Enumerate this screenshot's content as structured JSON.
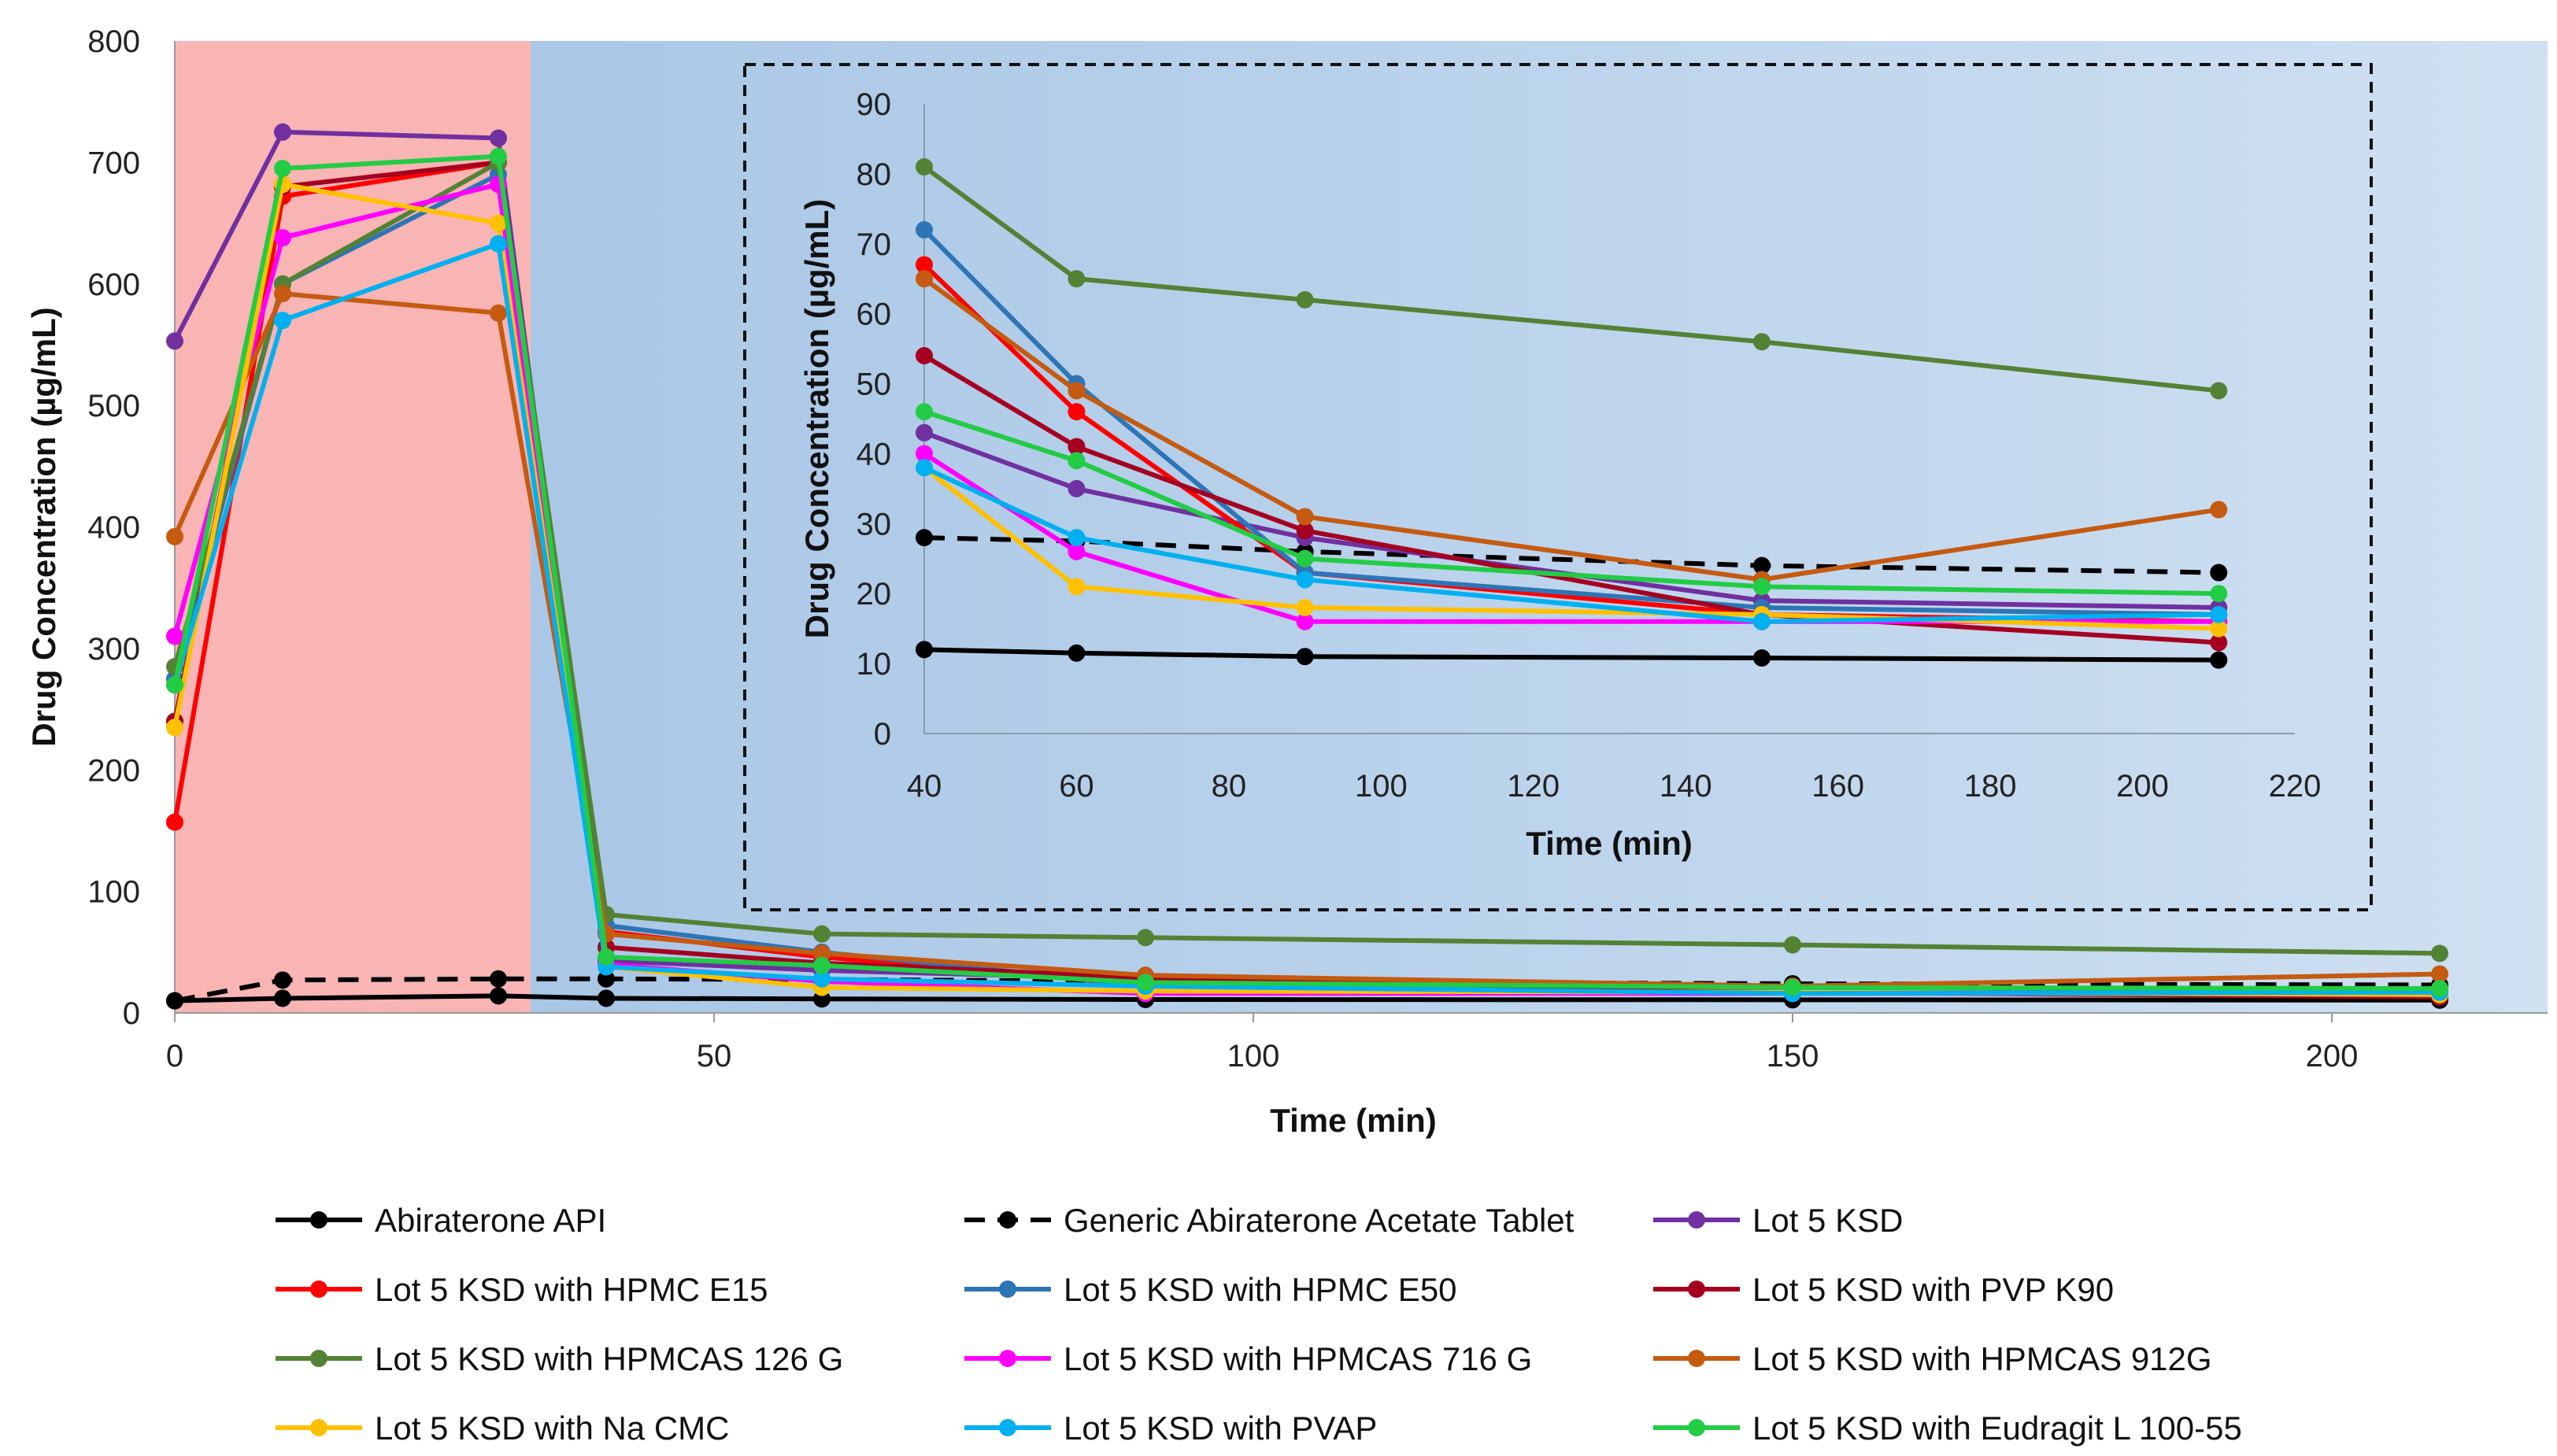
{
  "chart_data": [
    {
      "type": "line",
      "name": "main-chart",
      "xlabel": "Time (min)",
      "ylabel": "Drug Concentration (µg/mL)",
      "xlim": [
        0,
        220
      ],
      "ylim": [
        0,
        800
      ],
      "xticks": [
        0,
        50,
        100,
        150,
        200
      ],
      "yticks": [
        0,
        100,
        200,
        300,
        400,
        500,
        600,
        700,
        800
      ],
      "regions": [
        {
          "name": "gastric-phase",
          "x_range": [
            0,
            33
          ],
          "color": "#f9b4b4"
        },
        {
          "name": "intestinal-phase",
          "x_range": [
            33,
            220
          ],
          "color": "#bcd3e9"
        }
      ],
      "x": [
        0,
        10,
        30,
        40,
        60,
        90,
        150,
        210
      ],
      "series": [
        {
          "name": "Abiraterone API",
          "color": "#000000",
          "dashed": false,
          "values": [
            10,
            12,
            14,
            12,
            11.5,
            11,
            10.8,
            10.5
          ]
        },
        {
          "name": "Generic Abiraterone Acetate Tablet",
          "color": "#000000",
          "dashed": true,
          "values": [
            10,
            27,
            28,
            28,
            27.5,
            26,
            24,
            23
          ]
        },
        {
          "name": "Lot 5 KSD",
          "color": "#7030a0",
          "dashed": false,
          "values": [
            553,
            725,
            720,
            43,
            35,
            28,
            19,
            18
          ]
        },
        {
          "name": "Lot 5 KSD with HPMC E15",
          "color": "#ff0000",
          "dashed": false,
          "values": [
            157,
            672,
            700,
            67,
            46,
            23,
            17,
            16
          ]
        },
        {
          "name": "Lot 5 KSD with HPMC E50",
          "color": "#2e75b6",
          "dashed": false,
          "values": [
            275,
            600,
            690,
            72,
            50,
            23,
            18,
            17
          ]
        },
        {
          "name": "Lot 5 KSD with PVP K90",
          "color": "#a50021",
          "dashed": false,
          "values": [
            240,
            680,
            700,
            54,
            41,
            29,
            17,
            13
          ]
        },
        {
          "name": "Lot 5 KSD with  HPMCAS 126 G",
          "color": "#548235",
          "dashed": false,
          "values": [
            285,
            600,
            700,
            81,
            65,
            62,
            56,
            49
          ]
        },
        {
          "name": "Lot 5 KSD with  HPMCAS 716 G",
          "color": "#ff00ff",
          "dashed": false,
          "values": [
            310,
            638,
            682,
            40,
            26,
            16,
            16,
            16
          ]
        },
        {
          "name": "Lot 5 KSD with  HPMCAS 912G",
          "color": "#c55a11",
          "dashed": false,
          "values": [
            392,
            592,
            576,
            65,
            49,
            31,
            22,
            32
          ]
        },
        {
          "name": "Lot 5 KSD with Na CMC",
          "color": "#ffc000",
          "dashed": false,
          "values": [
            235,
            682,
            650,
            38,
            21,
            18,
            17,
            15
          ]
        },
        {
          "name": "Lot 5 KSD with PVAP",
          "color": "#00b0f0",
          "dashed": false,
          "values": [
            270,
            570,
            633,
            38,
            28,
            22,
            16,
            17
          ]
        },
        {
          "name": "Lot 5 KSD with Eudragit L 100-55",
          "color": "#22cc44",
          "dashed": false,
          "values": [
            270,
            695,
            705,
            46,
            39,
            25,
            21,
            20
          ]
        }
      ],
      "legend_position": "bottom"
    },
    {
      "type": "line",
      "name": "inset-chart",
      "xlabel": "Time (min)",
      "ylabel": "Drug Concentration (µg/mL)",
      "xlim": [
        40,
        220
      ],
      "ylim": [
        0,
        90
      ],
      "xticks": [
        40,
        60,
        80,
        100,
        120,
        140,
        160,
        180,
        200,
        220
      ],
      "yticks": [
        0,
        10,
        20,
        30,
        40,
        50,
        60,
        70,
        80,
        90
      ],
      "x": [
        40,
        60,
        90,
        150,
        210
      ],
      "series_ref": "main-chart series, time points 40 to 210 min"
    }
  ],
  "legend": {
    "items": [
      {
        "label": "Abiraterone API",
        "color": "#000000",
        "dashed": false
      },
      {
        "label": "Generic Abiraterone Acetate Tablet",
        "color": "#000000",
        "dashed": true
      },
      {
        "label": "Lot 5 KSD",
        "color": "#7030a0",
        "dashed": false
      },
      {
        "label": "Lot 5 KSD with HPMC E15",
        "color": "#ff0000",
        "dashed": false
      },
      {
        "label": "Lot 5 KSD with HPMC E50",
        "color": "#2e75b6",
        "dashed": false
      },
      {
        "label": "Lot 5 KSD with PVP K90",
        "color": "#a50021",
        "dashed": false
      },
      {
        "label": "Lot 5 KSD with  HPMCAS 126 G",
        "color": "#548235",
        "dashed": false
      },
      {
        "label": "Lot 5 KSD with  HPMCAS 716 G",
        "color": "#ff00ff",
        "dashed": false
      },
      {
        "label": "Lot 5 KSD with  HPMCAS 912G",
        "color": "#c55a11",
        "dashed": false
      },
      {
        "label": "Lot 5 KSD with Na CMC",
        "color": "#ffc000",
        "dashed": false
      },
      {
        "label": "Lot 5 KSD with PVAP",
        "color": "#00b0f0",
        "dashed": false
      },
      {
        "label": "Lot 5 KSD with Eudragit L 100-55",
        "color": "#22cc44",
        "dashed": false
      }
    ]
  }
}
